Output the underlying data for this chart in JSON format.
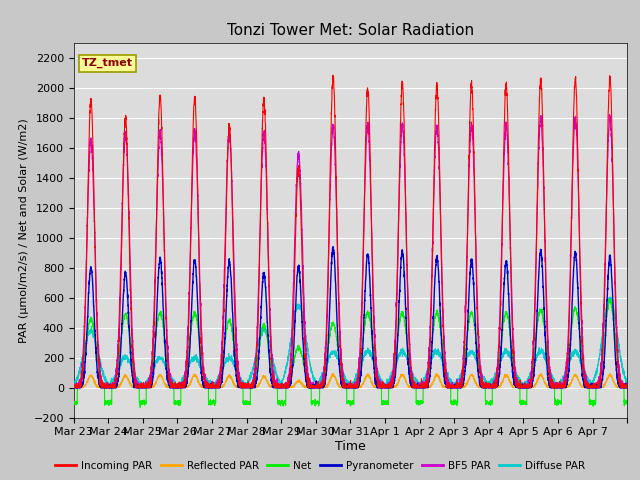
{
  "title": "Tonzi Tower Met: Solar Radiation",
  "xlabel": "Time",
  "ylabel": "PAR (μmol/m2/s) / Net and Solar (W/m2)",
  "ylim": [
    -200,
    2300
  ],
  "yticks": [
    -200,
    0,
    200,
    400,
    600,
    800,
    1000,
    1200,
    1400,
    1600,
    1800,
    2000,
    2200
  ],
  "x_tick_labels": [
    "Mar 23",
    "Mar 24",
    "Mar 25",
    "Mar 26",
    "Mar 27",
    "Mar 28",
    "Mar 29",
    "Mar 30",
    "Mar 31",
    "Apr 1",
    "Apr 2",
    "Apr 3",
    "Apr 4",
    "Apr 5",
    "Apr 6",
    "Apr 7"
  ],
  "num_days": 16,
  "annotation_text": "TZ_tmet",
  "annotation_color": "#8B0000",
  "annotation_bg": "#FFFF99",
  "annotation_border": "#999900",
  "series_colors": {
    "incoming_par": "#FF0000",
    "reflected_par": "#FFA500",
    "net": "#00EE00",
    "pyranometer": "#0000CC",
    "bf5_par": "#CC00CC",
    "diffuse_par": "#00CCCC"
  },
  "legend_labels": [
    "Incoming PAR",
    "Reflected PAR",
    "Net",
    "Pyranometer",
    "BF5 PAR",
    "Diffuse PAR"
  ],
  "bg_color": "#DCDCDC",
  "grid_color": "#FFFFFF",
  "fig_bg_color": "#C8C8C8",
  "title_fontsize": 11,
  "label_fontsize": 9,
  "tick_fontsize": 8,
  "peaks_incoming": [
    1920,
    1800,
    1950,
    1930,
    1750,
    1930,
    1470,
    2070,
    2000,
    2020,
    2020,
    2020,
    2020,
    2060,
    2060,
    2060
  ],
  "peaks_reflected": [
    80,
    80,
    85,
    85,
    80,
    75,
    45,
    85,
    85,
    85,
    85,
    85,
    85,
    85,
    85,
    85
  ],
  "peaks_net": [
    460,
    490,
    500,
    500,
    450,
    420,
    270,
    430,
    500,
    500,
    500,
    500,
    500,
    520,
    530,
    580
  ],
  "peaks_pyranometer": [
    800,
    760,
    860,
    850,
    840,
    760,
    810,
    930,
    890,
    910,
    870,
    850,
    840,
    910,
    900,
    870
  ],
  "peaks_bf5": [
    1650,
    1700,
    1700,
    1700,
    1700,
    1700,
    1560,
    1750,
    1750,
    1750,
    1750,
    1750,
    1750,
    1800,
    1800,
    1800
  ],
  "peaks_diffuse": [
    380,
    200,
    200,
    200,
    200,
    390,
    550,
    240,
    240,
    240,
    240,
    240,
    240,
    240,
    240,
    590
  ],
  "net_night": -100
}
